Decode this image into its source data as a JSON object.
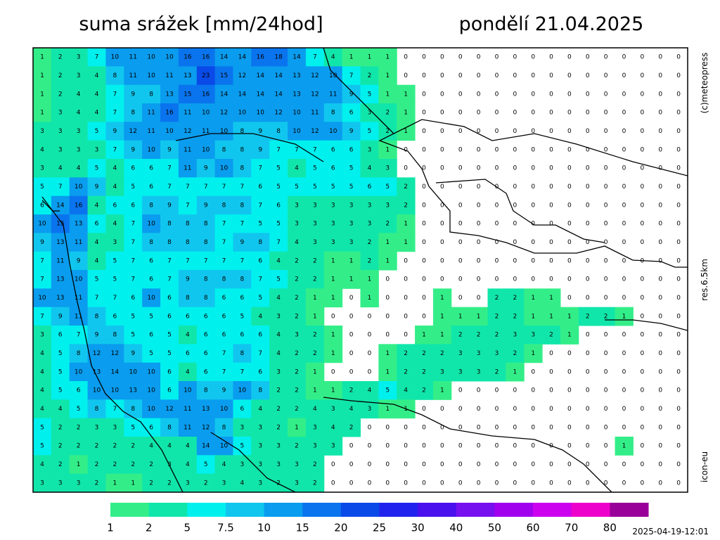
{
  "header": {
    "title": "suma srážek [mm/24hod]",
    "date": "pondělí 21.04.2025"
  },
  "side_labels": {
    "copyright": "(c)meteopress",
    "resolution": "res.6.5km",
    "model": "icon-eu"
  },
  "timestamp": "2025-04-19-12:01",
  "legend": {
    "levels": [
      1,
      2,
      5,
      7.5,
      10,
      15,
      20,
      25,
      30,
      40,
      50,
      60,
      70,
      80
    ],
    "colors": [
      "#33ee88",
      "#11e6aa",
      "#00f0ee",
      "#11c6ee",
      "#0a9cee",
      "#0a74ee",
      "#0a4ae8",
      "#2222ee",
      "#4a10ee",
      "#7710ee",
      "#a000ee",
      "#cc00ee",
      "#ee00cc",
      "#990099"
    ]
  },
  "grid": {
    "rows": [
      [
        1,
        2,
        3,
        7,
        10,
        11,
        10,
        10,
        16,
        16,
        14,
        14,
        16,
        18,
        14,
        7,
        4,
        1,
        1,
        1,
        0,
        0,
        0,
        0,
        0,
        0,
        0,
        0,
        0,
        0,
        0,
        0,
        0,
        0,
        0,
        0
      ],
      [
        1,
        2,
        3,
        4,
        8,
        11,
        10,
        11,
        13,
        23,
        15,
        12,
        14,
        14,
        13,
        12,
        10,
        7,
        2,
        1,
        0,
        0,
        0,
        0,
        0,
        0,
        0,
        0,
        0,
        0,
        0,
        0,
        0,
        0,
        0,
        0
      ],
      [
        1,
        2,
        4,
        4,
        7,
        9,
        8,
        13,
        15,
        16,
        14,
        14,
        14,
        14,
        13,
        12,
        11,
        9,
        5,
        1,
        1,
        0,
        0,
        0,
        0,
        0,
        0,
        0,
        0,
        0,
        0,
        0,
        0,
        0,
        0,
        0
      ],
      [
        1,
        3,
        4,
        4,
        7,
        8,
        11,
        16,
        11,
        10,
        12,
        10,
        10,
        12,
        10,
        11,
        8,
        6,
        3,
        2,
        1,
        0,
        0,
        0,
        0,
        0,
        0,
        0,
        0,
        0,
        0,
        0,
        0,
        0,
        0,
        0
      ],
      [
        3,
        3,
        3,
        5,
        9,
        12,
        11,
        10,
        12,
        11,
        10,
        8,
        9,
        8,
        10,
        12,
        10,
        9,
        5,
        2,
        1,
        0,
        0,
        0,
        0,
        0,
        0,
        0,
        0,
        0,
        0,
        0,
        0,
        0,
        0,
        0
      ],
      [
        4,
        3,
        3,
        3,
        7,
        9,
        10,
        9,
        11,
        10,
        8,
        8,
        9,
        7,
        7,
        7,
        6,
        6,
        3,
        1,
        0,
        0,
        0,
        0,
        0,
        0,
        0,
        0,
        0,
        0,
        0,
        0,
        0,
        0,
        0,
        0
      ],
      [
        3,
        4,
        4,
        5,
        4,
        6,
        6,
        7,
        11,
        9,
        10,
        8,
        7,
        5,
        4,
        5,
        6,
        5,
        4,
        3,
        0,
        0,
        0,
        0,
        0,
        0,
        0,
        0,
        0,
        0,
        0,
        0,
        0,
        0,
        0,
        0
      ],
      [
        5,
        7,
        10,
        9,
        4,
        5,
        6,
        7,
        7,
        7,
        7,
        7,
        6,
        5,
        5,
        5,
        5,
        5,
        6,
        5,
        2,
        0,
        0,
        0,
        0,
        0,
        0,
        0,
        0,
        0,
        0,
        0,
        0,
        0,
        0,
        0
      ],
      [
        6,
        14,
        16,
        4,
        6,
        6,
        8,
        9,
        7,
        9,
        8,
        8,
        7,
        6,
        3,
        3,
        3,
        3,
        3,
        3,
        2,
        0,
        0,
        0,
        0,
        0,
        0,
        0,
        0,
        0,
        0,
        0,
        0,
        0,
        0,
        0
      ],
      [
        10,
        15,
        13,
        6,
        4,
        7,
        10,
        8,
        8,
        8,
        7,
        7,
        5,
        5,
        3,
        3,
        3,
        3,
        3,
        2,
        1,
        0,
        0,
        0,
        0,
        0,
        0,
        0,
        0,
        0,
        0,
        0,
        0,
        0,
        0,
        0
      ],
      [
        9,
        13,
        11,
        4,
        3,
        7,
        8,
        8,
        8,
        8,
        7,
        9,
        8,
        7,
        4,
        3,
        3,
        3,
        2,
        1,
        1,
        0,
        0,
        0,
        0,
        0,
        0,
        0,
        0,
        0,
        0,
        0,
        0,
        0,
        0,
        0
      ],
      [
        7,
        11,
        9,
        4,
        5,
        7,
        6,
        7,
        7,
        7,
        7,
        7,
        6,
        4,
        2,
        2,
        1,
        1,
        2,
        1,
        0,
        0,
        0,
        0,
        0,
        0,
        0,
        0,
        0,
        0,
        0,
        0,
        0,
        0,
        0,
        0
      ],
      [
        7,
        13,
        10,
        5,
        5,
        7,
        6,
        7,
        9,
        8,
        8,
        8,
        7,
        5,
        2,
        2,
        1,
        1,
        1,
        0,
        0,
        0,
        0,
        0,
        0,
        0,
        0,
        0,
        0,
        0,
        0,
        0,
        0,
        0,
        0,
        0
      ],
      [
        10,
        13,
        11,
        7,
        7,
        6,
        10,
        6,
        8,
        8,
        6,
        6,
        5,
        4,
        2,
        1,
        1,
        0,
        1,
        0,
        0,
        0,
        1,
        0,
        0,
        2,
        2,
        1,
        1,
        0,
        0,
        0,
        0,
        0,
        0,
        0
      ],
      [
        7,
        9,
        11,
        8,
        6,
        5,
        5,
        6,
        6,
        6,
        6,
        5,
        4,
        3,
        2,
        1,
        0,
        0,
        0,
        0,
        0,
        0,
        1,
        1,
        1,
        2,
        2,
        1,
        1,
        1,
        2,
        2,
        1,
        0,
        0,
        0
      ],
      [
        3,
        6,
        7,
        9,
        8,
        5,
        6,
        5,
        4,
        6,
        6,
        6,
        6,
        4,
        3,
        2,
        1,
        0,
        0,
        0,
        0,
        1,
        1,
        2,
        2,
        2,
        3,
        3,
        2,
        1,
        0,
        0,
        0,
        0,
        0,
        0
      ],
      [
        4,
        5,
        8,
        12,
        12,
        9,
        5,
        5,
        6,
        6,
        7,
        8,
        7,
        4,
        2,
        2,
        1,
        0,
        0,
        1,
        2,
        2,
        2,
        3,
        3,
        3,
        2,
        1,
        0,
        0,
        0,
        0,
        0,
        0,
        0,
        0
      ],
      [
        4,
        5,
        10,
        13,
        14,
        10,
        10,
        6,
        4,
        6,
        7,
        7,
        6,
        3,
        2,
        1,
        0,
        0,
        0,
        1,
        2,
        2,
        3,
        3,
        3,
        2,
        1,
        0,
        0,
        0,
        0,
        0,
        0,
        0,
        0,
        0
      ],
      [
        4,
        5,
        6,
        10,
        10,
        13,
        10,
        6,
        10,
        8,
        9,
        10,
        8,
        2,
        2,
        1,
        1,
        2,
        4,
        5,
        4,
        2,
        1,
        0,
        0,
        0,
        0,
        0,
        0,
        0,
        0,
        0,
        0,
        0,
        0,
        0
      ],
      [
        4,
        4,
        5,
        8,
        7,
        8,
        10,
        12,
        11,
        13,
        10,
        6,
        4,
        2,
        2,
        4,
        3,
        4,
        3,
        1,
        1,
        0,
        0,
        0,
        0,
        0,
        0,
        0,
        0,
        0,
        0,
        0,
        0,
        0,
        0,
        0
      ],
      [
        5,
        2,
        2,
        3,
        3,
        5,
        6,
        8,
        11,
        12,
        8,
        3,
        3,
        2,
        1,
        3,
        4,
        2,
        0,
        0,
        0,
        0,
        0,
        0,
        0,
        0,
        0,
        0,
        0,
        0,
        0,
        0,
        0,
        0,
        0,
        0
      ],
      [
        5,
        2,
        2,
        2,
        2,
        2,
        4,
        4,
        4,
        14,
        10,
        5,
        3,
        3,
        2,
        3,
        3,
        0,
        0,
        0,
        0,
        0,
        0,
        0,
        0,
        0,
        0,
        0,
        0,
        0,
        0,
        0,
        1,
        0,
        0,
        0
      ],
      [
        4,
        2,
        1,
        2,
        2,
        2,
        2,
        3,
        4,
        5,
        4,
        3,
        3,
        3,
        3,
        2,
        0,
        0,
        0,
        0,
        0,
        0,
        0,
        0,
        0,
        0,
        0,
        0,
        0,
        0,
        0,
        0,
        0,
        0,
        0,
        0
      ],
      [
        3,
        3,
        3,
        2,
        1,
        1,
        2,
        2,
        3,
        2,
        3,
        4,
        3,
        2,
        3,
        2,
        0,
        0,
        0,
        0,
        0,
        0,
        0,
        0,
        0,
        0,
        0,
        0,
        0,
        0,
        0,
        0,
        0,
        0,
        0,
        0
      ]
    ]
  }
}
